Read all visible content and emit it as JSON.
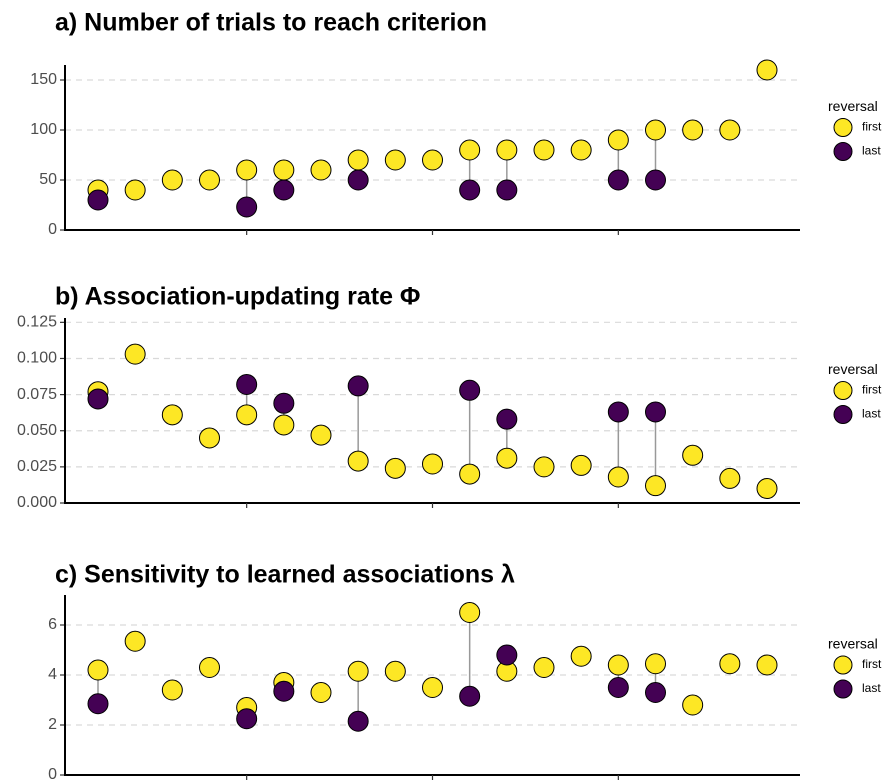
{
  "chart_data": [
    {
      "type": "dotplot",
      "title": "a) Number of trials to reach criterion",
      "legend_title": "reversal",
      "legend": "right",
      "grid": true,
      "categories": [
        null,
        null,
        null,
        null,
        null,
        null,
        null,
        null,
        null,
        null,
        null,
        null,
        null,
        null,
        null,
        null,
        null,
        null,
        null
      ],
      "ylim": [
        0,
        165
      ],
      "yticks": [
        0,
        50,
        100,
        150
      ],
      "series": [
        {
          "name": "first",
          "color": "#FDE725",
          "values": [
            40,
            40,
            50,
            50,
            60,
            60,
            60,
            70,
            70,
            70,
            80,
            80,
            80,
            80,
            90,
            100,
            100,
            100,
            160
          ]
        },
        {
          "name": "last",
          "color": "#440154",
          "values": [
            30,
            null,
            null,
            null,
            23,
            40,
            null,
            50,
            null,
            null,
            40,
            40,
            null,
            null,
            50,
            50,
            null,
            null,
            null
          ]
        }
      ]
    },
    {
      "type": "dotplot",
      "title": "b) Association-updating rate Φ",
      "legend_title": "reversal",
      "legend": "right",
      "grid": true,
      "categories": [
        null,
        null,
        null,
        null,
        null,
        null,
        null,
        null,
        null,
        null,
        null,
        null,
        null,
        null,
        null,
        null,
        null,
        null,
        null
      ],
      "ylim": [
        0,
        0.128
      ],
      "yticks": [
        {
          "value": 0,
          "label": "0.000"
        },
        {
          "value": 0.025,
          "label": "0.025"
        },
        {
          "value": 0.05,
          "label": "0.050"
        },
        {
          "value": 0.075,
          "label": "0.075"
        },
        {
          "value": 0.1,
          "label": "0.100"
        },
        {
          "value": 0.125,
          "label": "0.125"
        }
      ],
      "series": [
        {
          "name": "first",
          "color": "#FDE725",
          "values": [
            0.077,
            0.103,
            0.061,
            0.045,
            0.061,
            0.054,
            0.047,
            0.029,
            0.024,
            0.027,
            0.02,
            0.031,
            0.025,
            0.026,
            0.018,
            0.012,
            0.033,
            0.017,
            0.01
          ]
        },
        {
          "name": "last",
          "color": "#440154",
          "values": [
            0.072,
            null,
            null,
            null,
            0.082,
            0.069,
            null,
            0.081,
            null,
            null,
            0.078,
            0.058,
            null,
            null,
            0.063,
            0.063,
            null,
            null,
            null
          ]
        }
      ]
    },
    {
      "type": "dotplot",
      "title": "c) Sensitivity to learned associations λ",
      "legend_title": "reversal",
      "legend": "right",
      "grid": true,
      "categories": [
        null,
        null,
        null,
        null,
        null,
        null,
        null,
        null,
        null,
        null,
        null,
        null,
        null,
        null,
        null,
        null,
        null,
        null,
        null
      ],
      "ylim": [
        0,
        7.2
      ],
      "yticks": [
        0,
        2,
        4,
        6
      ],
      "series": [
        {
          "name": "first",
          "color": "#FDE725",
          "values": [
            4.2,
            5.35,
            3.4,
            4.3,
            2.7,
            3.7,
            3.3,
            4.15,
            4.15,
            3.5,
            6.5,
            4.15,
            4.3,
            4.75,
            4.4,
            4.45,
            2.8,
            4.45,
            4.4
          ]
        },
        {
          "name": "last",
          "color": "#440154",
          "values": [
            2.85,
            null,
            null,
            null,
            2.25,
            3.35,
            null,
            2.15,
            null,
            null,
            3.15,
            4.8,
            null,
            null,
            3.5,
            3.3,
            null,
            null,
            null
          ]
        }
      ]
    }
  ]
}
